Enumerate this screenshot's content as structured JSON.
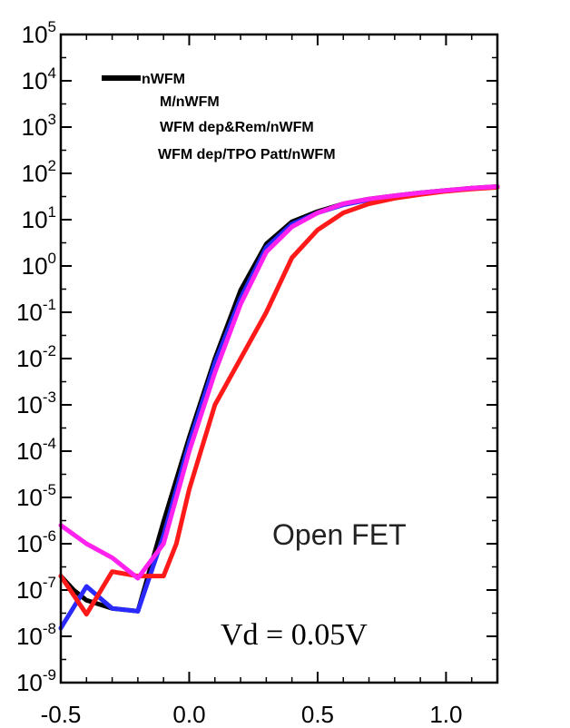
{
  "chart_data": {
    "type": "line",
    "title": "",
    "xlabel": "",
    "ylabel": "",
    "xlim": [
      -0.5,
      1.2
    ],
    "ylim_log10": [
      -9,
      5
    ],
    "y_scale": "log",
    "grid": false,
    "x_ticks": [
      -0.5,
      0.0,
      0.5,
      1.0
    ],
    "x_tick_labels": [
      "-0.5",
      "0.0",
      "0.5",
      "1.0"
    ],
    "y_ticks": [
      {
        "base": "10",
        "exp": "5"
      },
      {
        "base": "10",
        "exp": "4"
      },
      {
        "base": "10",
        "exp": "3"
      },
      {
        "base": "10",
        "exp": "2"
      },
      {
        "base": "10",
        "exp": "1"
      },
      {
        "base": "10",
        "exp": "0"
      },
      {
        "base": "10",
        "exp": "-1"
      },
      {
        "base": "10",
        "exp": "-2"
      },
      {
        "base": "10",
        "exp": "-3"
      },
      {
        "base": "10",
        "exp": "-4"
      },
      {
        "base": "10",
        "exp": "-5"
      },
      {
        "base": "10",
        "exp": "-6"
      },
      {
        "base": "10",
        "exp": "-7"
      },
      {
        "base": "10",
        "exp": "-8"
      },
      {
        "base": "10",
        "exp": "-9"
      }
    ],
    "legend_position": "top-left",
    "legend": [
      {
        "label": "nWFM",
        "color": "#000000"
      },
      {
        "label": "M/nWFM",
        "color": "#2a2aff"
      },
      {
        "label": "WFM dep&Rem/nWFM",
        "color": "#ff1a1a"
      },
      {
        "label": "WFM dep/TPO Patt/nWFM",
        "color": "#ff22ee"
      }
    ],
    "annotations": [
      "Open FET",
      "Vd = 0.05V"
    ],
    "series": [
      {
        "name": "nWFM",
        "color": "#000000",
        "x": [
          -0.5,
          -0.45,
          -0.4,
          -0.3,
          -0.2,
          -0.1,
          0.0,
          0.1,
          0.2,
          0.3,
          0.4,
          0.5,
          0.6,
          0.7,
          0.8,
          0.9,
          1.0,
          1.1,
          1.2
        ],
        "y": [
          2e-07,
          1e-07,
          6e-08,
          4e-08,
          3.5e-08,
          3e-06,
          0.0002,
          0.01,
          0.3,
          3,
          9,
          15,
          22,
          28,
          33,
          38,
          43,
          48,
          52
        ]
      },
      {
        "name": "M/nWFM",
        "color": "#2a2aff",
        "x": [
          -0.5,
          -0.4,
          -0.3,
          -0.2,
          -0.1,
          0.0,
          0.1,
          0.2,
          0.3,
          0.4,
          0.5,
          0.6,
          0.7,
          0.8,
          0.9,
          1.0,
          1.1,
          1.2
        ],
        "y": [
          1.5e-08,
          1.2e-07,
          4e-08,
          3.5e-08,
          1.5e-06,
          0.00015,
          0.008,
          0.2,
          2.5,
          8,
          14,
          21,
          27,
          32,
          37,
          42,
          47,
          51
        ]
      },
      {
        "name": "WFM dep&Rem/nWFM",
        "color": "#ff1a1a",
        "x": [
          -0.5,
          -0.4,
          -0.3,
          -0.2,
          -0.1,
          -0.05,
          0.0,
          0.1,
          0.2,
          0.3,
          0.4,
          0.5,
          0.6,
          0.7,
          0.8,
          0.9,
          1.0,
          1.1,
          1.2
        ],
        "y": [
          2e-07,
          3e-08,
          2.5e-07,
          2e-07,
          2e-07,
          1e-06,
          1.5e-05,
          0.001,
          0.01,
          0.1,
          1.5,
          6,
          14,
          22,
          29,
          35,
          41,
          46,
          50
        ]
      },
      {
        "name": "WFM dep/TPO Patt/nWFM",
        "color": "#ff22ee",
        "x": [
          -0.5,
          -0.4,
          -0.3,
          -0.2,
          -0.1,
          0.0,
          0.1,
          0.2,
          0.3,
          0.4,
          0.5,
          0.6,
          0.7,
          0.8,
          0.9,
          1.0,
          1.1,
          1.2
        ],
        "y": [
          2.5e-06,
          1e-06,
          5e-07,
          1.8e-07,
          1e-06,
          0.0001,
          0.005,
          0.15,
          2,
          7,
          14,
          22,
          28,
          33,
          38,
          43,
          48,
          52
        ]
      }
    ]
  }
}
